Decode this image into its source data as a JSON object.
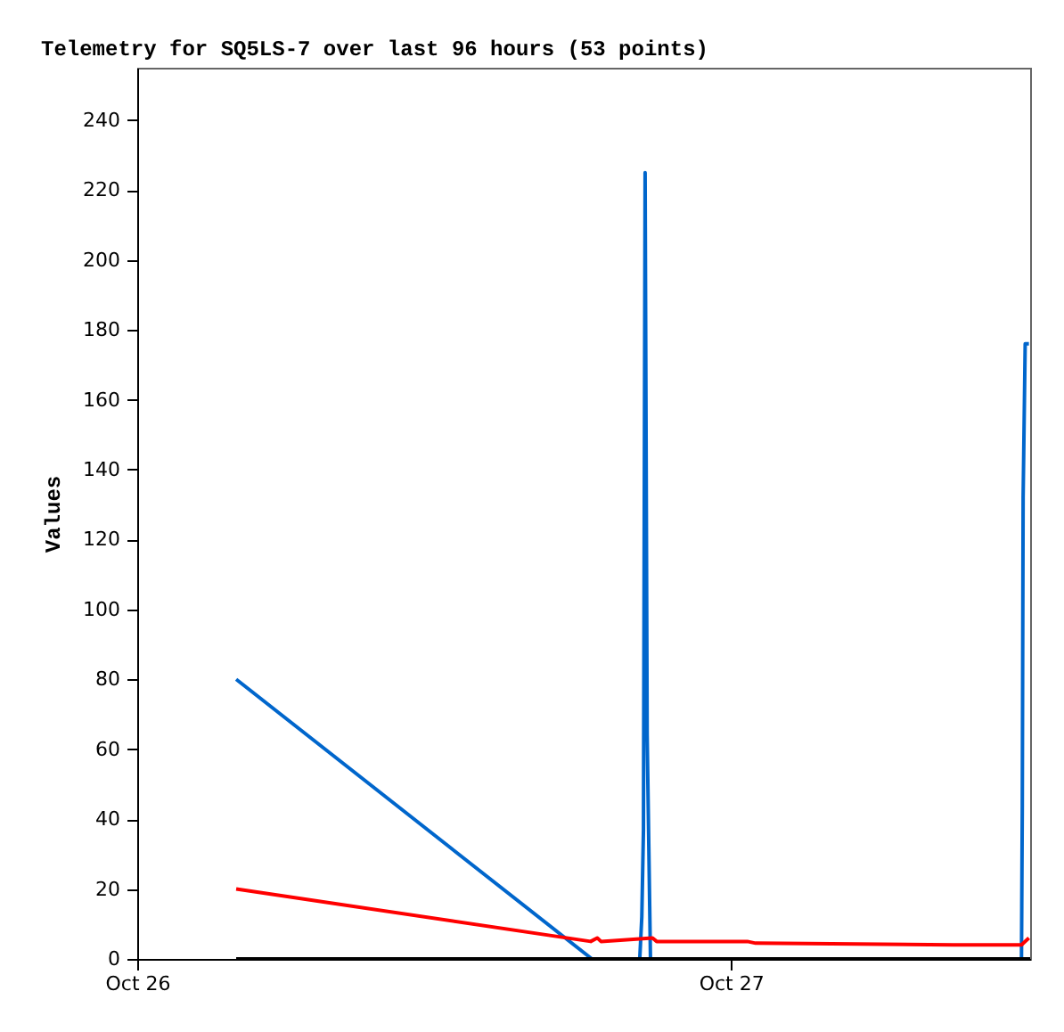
{
  "chart_data": {
    "type": "line",
    "title": "Telemetry for SQ5LS-7 over last 96 hours (53 points)",
    "ylabel": "Values",
    "xlim": [
      "--10-26T00:00",
      "--10-27T12:06"
    ],
    "xticks": [
      {
        "value": "--10-26T00:00",
        "label": "Oct 26"
      },
      {
        "value": "--10-27T00:00",
        "label": "Oct 27"
      }
    ],
    "ylim": [
      0,
      255
    ],
    "yticks": [
      0,
      20,
      40,
      60,
      80,
      100,
      120,
      140,
      160,
      180,
      200,
      220,
      240
    ],
    "grid": false,
    "line_style": "solid",
    "series": [
      {
        "color": "#0066cc",
        "x": [
          "--10-26T04:00",
          "--10-26T18:23",
          "--10-26T20:19",
          "--10-26T20:24",
          "--10-26T20:28",
          "--10-26T20:32",
          "--10-26T20:37",
          "--10-26T20:41",
          "--10-26T20:45",
          "--10-27T11:45",
          "--10-27T11:47",
          "--10-27T11:49",
          "--10-27T11:54",
          "--10-27T12:03"
        ],
        "values": [
          80,
          0,
          0,
          12,
          37,
          225,
          64,
          32,
          0,
          0,
          44,
          132,
          176,
          176
        ]
      },
      {
        "color": "#ff0000",
        "x": [
          "--10-26T04:00",
          "--10-26T18:20",
          "--10-26T18:36",
          "--10-26T18:45",
          "--10-26T20:50",
          "--10-26T21:00",
          "--10-27T00:40",
          "--10-27T01:00",
          "--10-27T09:00",
          "--10-27T11:45",
          "--10-27T12:03"
        ],
        "values": [
          20,
          5,
          6,
          5,
          6,
          5,
          5,
          4.5,
          4,
          4,
          6
        ]
      },
      {
        "color": "#000000",
        "x": [
          "--10-26T04:00",
          "--10-27T12:06"
        ],
        "values": [
          0,
          0
        ]
      }
    ]
  }
}
